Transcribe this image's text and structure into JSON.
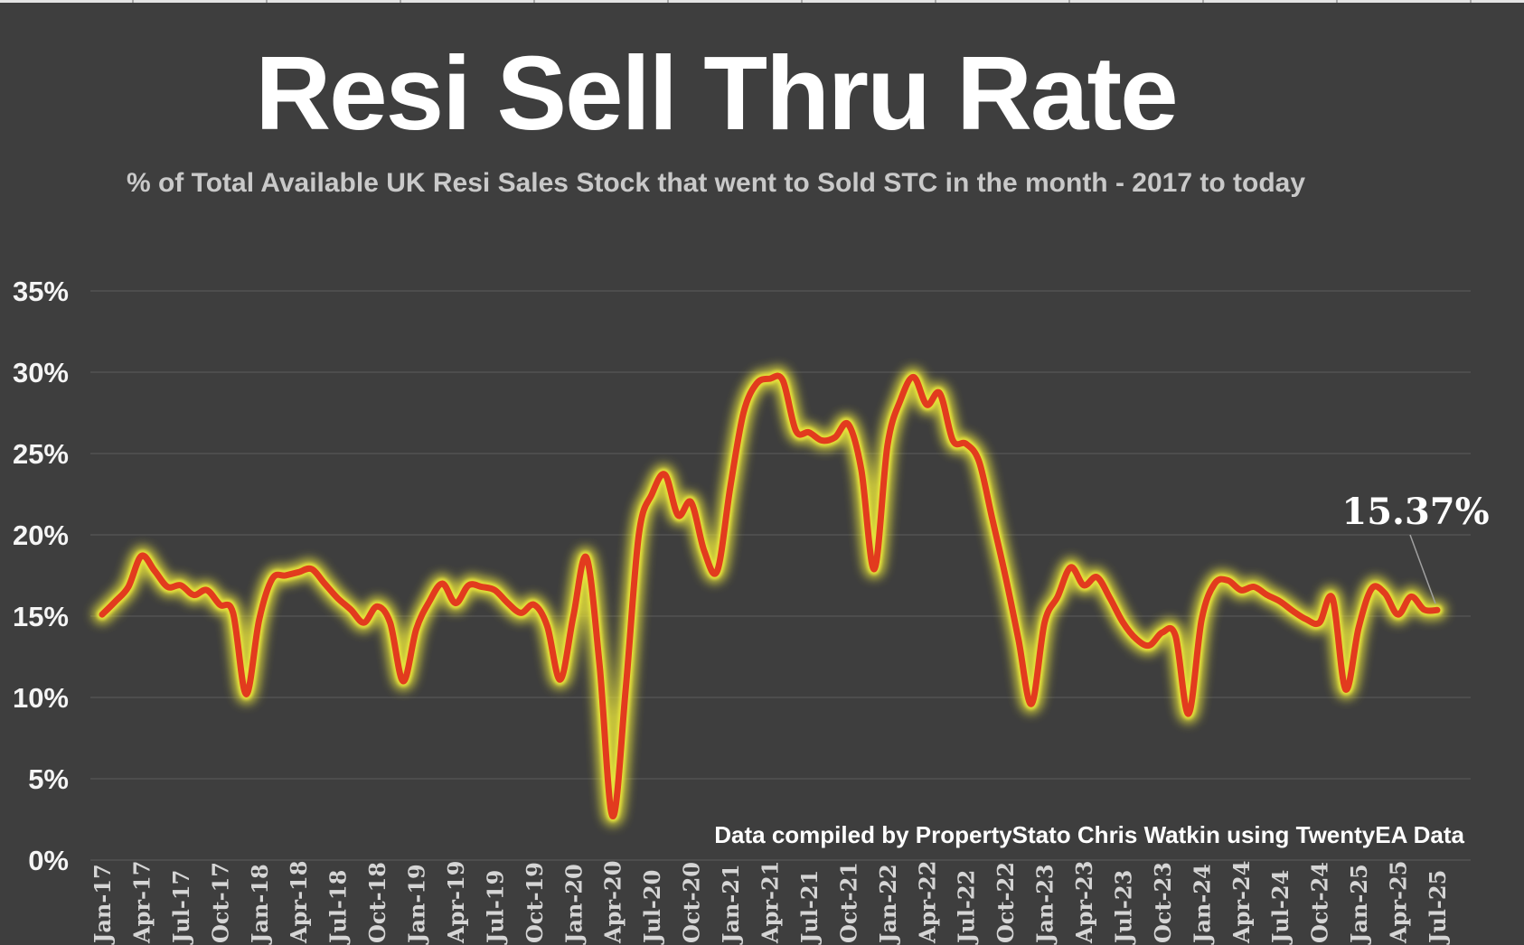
{
  "page": {
    "background": "#3e3e3e"
  },
  "header": {
    "title": "Resi Sell Thru Rate",
    "subtitle": "% of Total Available UK Resi Sales Stock that went to Sold STC in the month - 2017 to today"
  },
  "attribution": "Data compiled by PropertyStato Chris Watkin using TwentyEA Data",
  "annotation": {
    "label": "15.37%"
  },
  "colors": {
    "background": "#3e3e3e",
    "line": "#e23b1e",
    "glow": "#e7e33a",
    "grid": "#5c5c5c",
    "title": "#ffffff",
    "subtitle": "#c9c9c9",
    "y_labels": "#f5f5f5",
    "x_labels": "#d5d5d5"
  },
  "chart_data": {
    "type": "line",
    "title": "Resi Sell Thru Rate",
    "subtitle": "% of Total Available UK Resi Sales Stock that went to Sold STC in the month - 2017 to today",
    "xlabel": "",
    "ylabel": "",
    "ylim": [
      0,
      35
    ],
    "grid": "horizontal",
    "legend": "none",
    "ytick_labels": [
      "0%",
      "5%",
      "10%",
      "15%",
      "20%",
      "25%",
      "30%",
      "35%"
    ],
    "x_unit": "month",
    "x_start": "Jan-17",
    "x_end": "Jul-25",
    "x_tick_labels": [
      "Jan-17",
      "Apr-17",
      "Jul-17",
      "Oct-17",
      "Jan-18",
      "Apr-18",
      "Jul-18",
      "Oct-18",
      "Jan-19",
      "Apr-19",
      "Jul-19",
      "Oct-19",
      "Jan-20",
      "Apr-20",
      "Jul-20",
      "Oct-20",
      "Jan-21",
      "Apr-21",
      "Jul-21",
      "Oct-21",
      "Jan-22",
      "Apr-22",
      "Jul-22",
      "Oct-22",
      "Jan-23",
      "Apr-23",
      "Jul-23",
      "Oct-23",
      "Jan-24",
      "Apr-24",
      "Jul-24",
      "Oct-24",
      "Jan-25",
      "Apr-25",
      "Jul-25"
    ],
    "annotation": {
      "text": "15.37%",
      "month": "Jul-25",
      "value": 15.37
    },
    "series": [
      {
        "name": "Resi Sell Thru Rate",
        "values": [
          15.1,
          15.9,
          16.8,
          18.7,
          17.8,
          16.8,
          16.9,
          16.3,
          16.6,
          15.7,
          15.2,
          10.2,
          14.8,
          17.3,
          17.5,
          17.7,
          17.9,
          17.0,
          16.1,
          15.4,
          14.6,
          15.6,
          14.6,
          11.0,
          14.2,
          15.9,
          17.0,
          15.8,
          16.9,
          16.8,
          16.6,
          15.8,
          15.2,
          15.7,
          14.4,
          11.1,
          15.0,
          18.6,
          12.0,
          2.7,
          10.5,
          20.0,
          22.5,
          23.7,
          21.2,
          22.0,
          19.0,
          17.8,
          23.0,
          27.5,
          29.3,
          29.6,
          29.5,
          26.4,
          26.3,
          25.8,
          26.0,
          26.8,
          24.0,
          17.9,
          25.5,
          28.3,
          29.7,
          28.0,
          28.7,
          25.8,
          25.6,
          24.5,
          21.0,
          17.5,
          13.6,
          9.6,
          14.6,
          16.2,
          18.0,
          16.9,
          17.4,
          16.1,
          14.6,
          13.6,
          13.2,
          14.0,
          13.8,
          9.0,
          14.8,
          17.0,
          17.2,
          16.6,
          16.8,
          16.3,
          15.9,
          15.3,
          14.8,
          14.6,
          16.1,
          10.5,
          14.3,
          16.7,
          16.4,
          15.1,
          16.2,
          15.4,
          15.37
        ]
      }
    ]
  }
}
